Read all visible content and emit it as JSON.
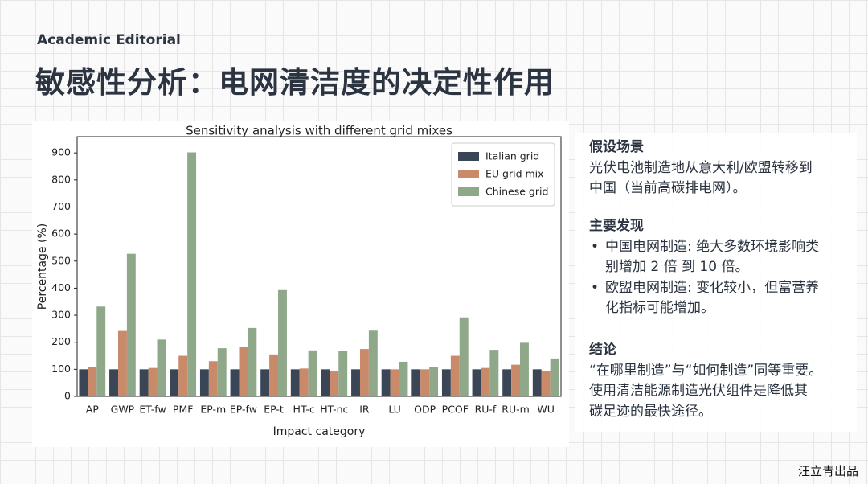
{
  "header": {
    "label": "Academic Editorial",
    "title": "敏感性分析：电网清洁度的决定性作用"
  },
  "sidebar": {
    "scenario": {
      "heading": "假设场景",
      "lines": [
        "光伏电池制造地从意大利/欧盟转移到",
        "中国（当前高碳排电网）。"
      ]
    },
    "findings": {
      "heading": "主要发现",
      "items": [
        [
          "中国电网制造: 绝大多数环境影响类",
          "别增加 2 倍 到 10 倍。"
        ],
        [
          "欧盟电网制造: 变化较小，但富营养",
          "化指标可能增加。"
        ]
      ]
    },
    "conclusion": {
      "heading": "结论",
      "lines": [
        "“在哪里制造”与“如何制造”同等重要。",
        "使用清洁能源制造光伏组件是降低其",
        "碳足迹的最快途径。"
      ]
    }
  },
  "footer": "汪立青出品",
  "chart_data": {
    "type": "bar",
    "title": "Sensitivity analysis with different grid mixes",
    "x_label": "Impact category",
    "y_label": "Percentage (%)",
    "categories": [
      "AP",
      "GWP",
      "ET-fw",
      "PMF",
      "EP-m",
      "EP-fw",
      "EP-t",
      "HT-c",
      "HT-nc",
      "IR",
      "LU",
      "ODP",
      "PCOF",
      "RU-f",
      "RU-m",
      "WU"
    ],
    "series": [
      {
        "name": "Italian grid",
        "color": "#3a4555",
        "values": [
          100,
          100,
          100,
          100,
          100,
          100,
          100,
          100,
          100,
          100,
          100,
          100,
          100,
          100,
          100,
          100
        ]
      },
      {
        "name": "EU grid mix",
        "color": "#c98a6a",
        "values": [
          108,
          242,
          105,
          150,
          130,
          182,
          155,
          103,
          92,
          175,
          100,
          100,
          150,
          105,
          117,
          95
        ]
      },
      {
        "name": "Chinese grid",
        "color": "#8fa88a",
        "values": [
          332,
          527,
          210,
          902,
          178,
          253,
          393,
          170,
          168,
          243,
          128,
          108,
          292,
          172,
          198,
          140
        ]
      }
    ],
    "ylim": [
      0,
      960
    ],
    "yticks": [
      0,
      100,
      200,
      300,
      400,
      500,
      600,
      700,
      800,
      900
    ],
    "legend": "upper right",
    "grid": false
  }
}
